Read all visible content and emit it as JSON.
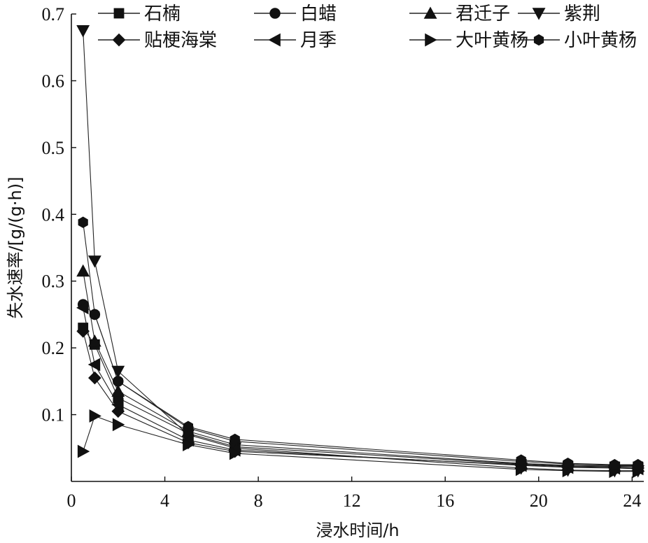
{
  "chart_data": {
    "type": "line",
    "xlabel": "浸水时间/h",
    "ylabel": "失水速率/[g/(g·h)]",
    "xlim": [
      0,
      24.5
    ],
    "ylim": [
      0,
      0.7
    ],
    "xticks": [
      0,
      4,
      8,
      12,
      16,
      20,
      24
    ],
    "yticks": [
      0.1,
      0.2,
      0.3,
      0.4,
      0.5,
      0.6,
      0.7
    ],
    "xtick_labels": [
      "0",
      "4",
      "8",
      "12",
      "16",
      "20",
      "24"
    ],
    "ytick_labels": [
      "0.1",
      "0.2",
      "0.3",
      "0.4",
      "0.5",
      "0.6",
      "0.7"
    ],
    "grid": false,
    "legend_position": "top",
    "x": [
      0.5,
      1.0,
      2.0,
      5.0,
      7.0,
      19.25,
      21.25,
      23.25,
      24.25
    ],
    "series": [
      {
        "name": "石楠",
        "marker": "square",
        "values": [
          0.23,
          0.205,
          0.125,
          0.072,
          0.052,
          0.026,
          0.023,
          0.022,
          0.022
        ]
      },
      {
        "name": "白蜡",
        "marker": "circle",
        "values": [
          0.265,
          0.25,
          0.15,
          0.08,
          0.06,
          0.03,
          0.026,
          0.024,
          0.024
        ]
      },
      {
        "name": "君迁子",
        "marker": "triangle-up",
        "values": [
          0.315,
          0.21,
          0.135,
          0.075,
          0.055,
          0.027,
          0.024,
          0.023,
          0.023
        ]
      },
      {
        "name": "紫荆",
        "marker": "triangle-down",
        "values": [
          0.675,
          0.33,
          0.165,
          0.07,
          0.05,
          0.02,
          0.017,
          0.016,
          0.016
        ]
      },
      {
        "name": "贴梗海棠",
        "marker": "diamond",
        "values": [
          0.225,
          0.155,
          0.105,
          0.058,
          0.045,
          0.025,
          0.022,
          0.021,
          0.02
        ]
      },
      {
        "name": "月季",
        "marker": "triangle-left",
        "values": [
          0.26,
          0.175,
          0.115,
          0.062,
          0.047,
          0.024,
          0.021,
          0.02,
          0.019
        ]
      },
      {
        "name": "大叶黄杨",
        "marker": "triangle-right",
        "values": [
          0.045,
          0.098,
          0.085,
          0.055,
          0.042,
          0.018,
          0.016,
          0.015,
          0.015
        ]
      },
      {
        "name": "小叶黄杨",
        "marker": "hexagon",
        "values": [
          0.388,
          0.25,
          0.15,
          0.082,
          0.063,
          0.032,
          0.027,
          0.025,
          0.025
        ]
      }
    ]
  }
}
